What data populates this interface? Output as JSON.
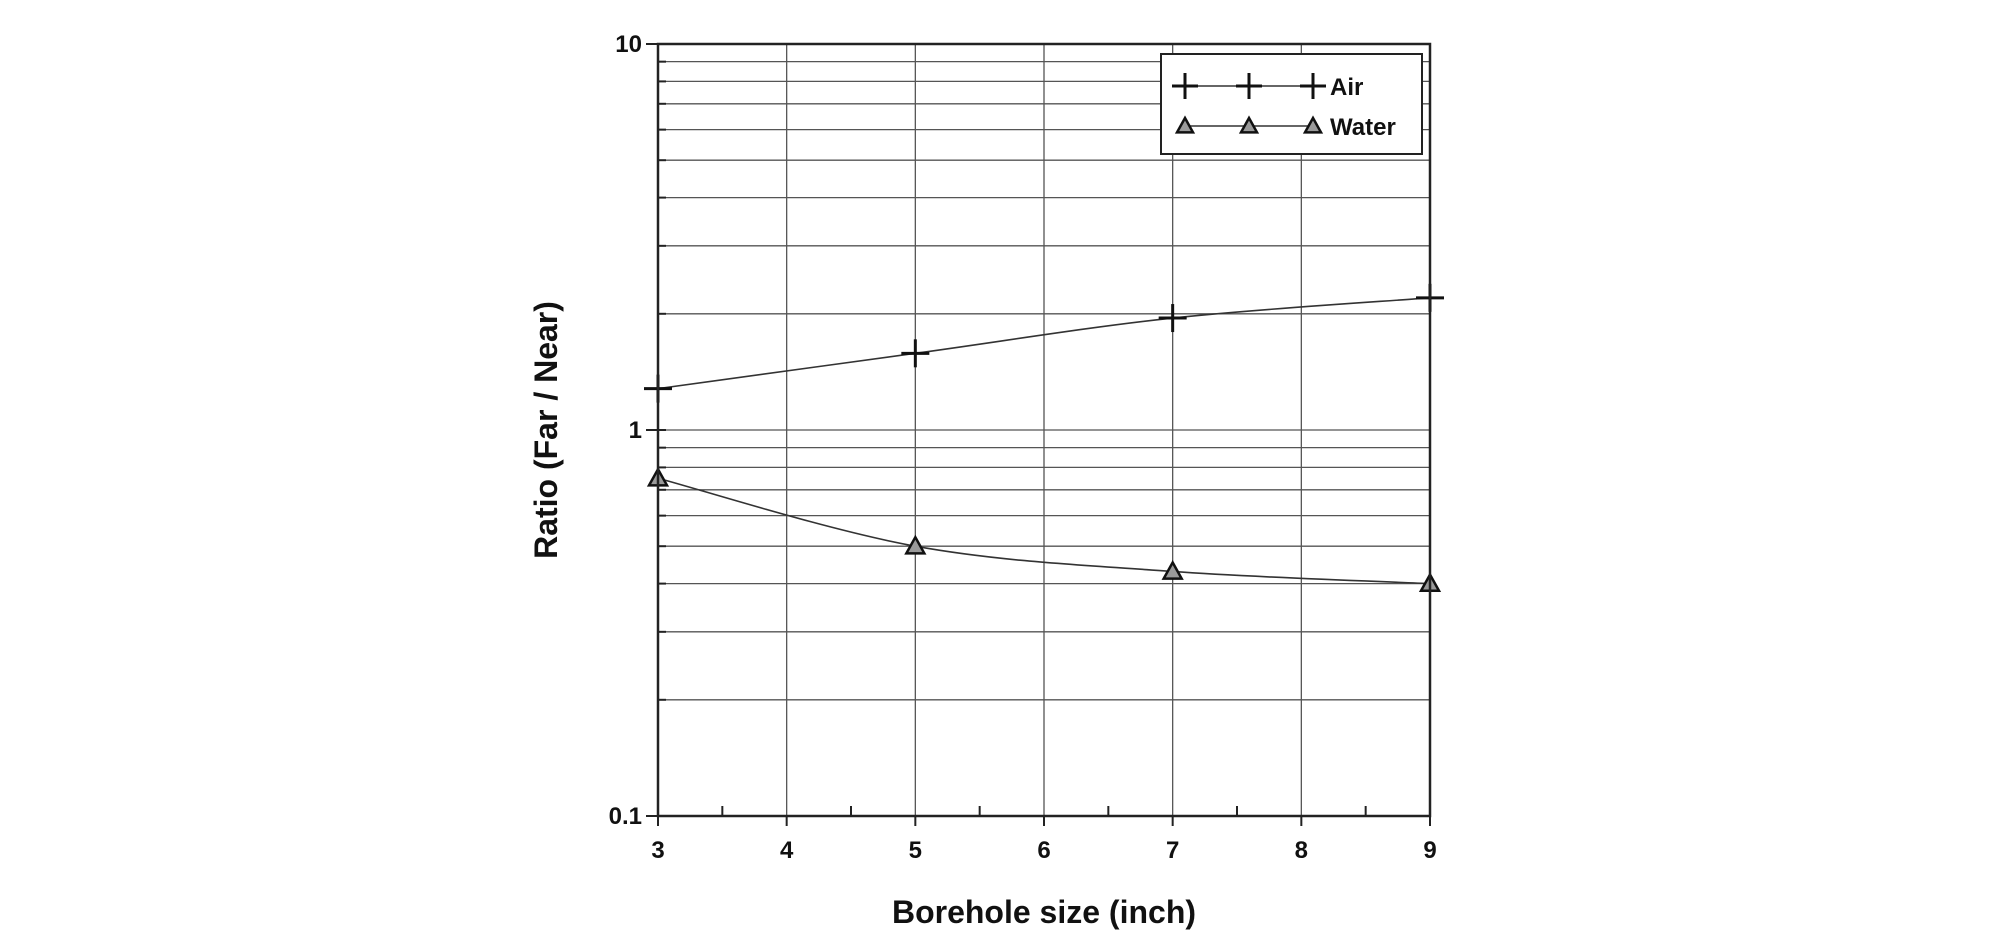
{
  "chart_data": {
    "type": "line",
    "title": "",
    "xlabel": "Borehole size (inch)",
    "ylabel": "Ratio (Far / Near)",
    "xlim": [
      3,
      9
    ],
    "ylim": [
      0.1,
      10
    ],
    "yscale": "log",
    "x_ticks": [
      "3",
      "4",
      "5",
      "6",
      "7",
      "8",
      "9"
    ],
    "y_ticks": [
      "0.1",
      "1",
      "10"
    ],
    "grid": true,
    "legend_position": "top-right",
    "series": [
      {
        "name": "Air",
        "marker": "plus",
        "x": [
          3,
          5,
          7,
          9
        ],
        "values": [
          1.28,
          1.58,
          1.95,
          2.2
        ]
      },
      {
        "name": "Water",
        "marker": "triangle",
        "x": [
          3,
          5,
          7,
          9
        ],
        "values": [
          0.75,
          0.5,
          0.43,
          0.4
        ]
      }
    ],
    "colors": {
      "line": "#333333",
      "grid": "#555555",
      "marker_fill": "#9a9a9a"
    }
  }
}
